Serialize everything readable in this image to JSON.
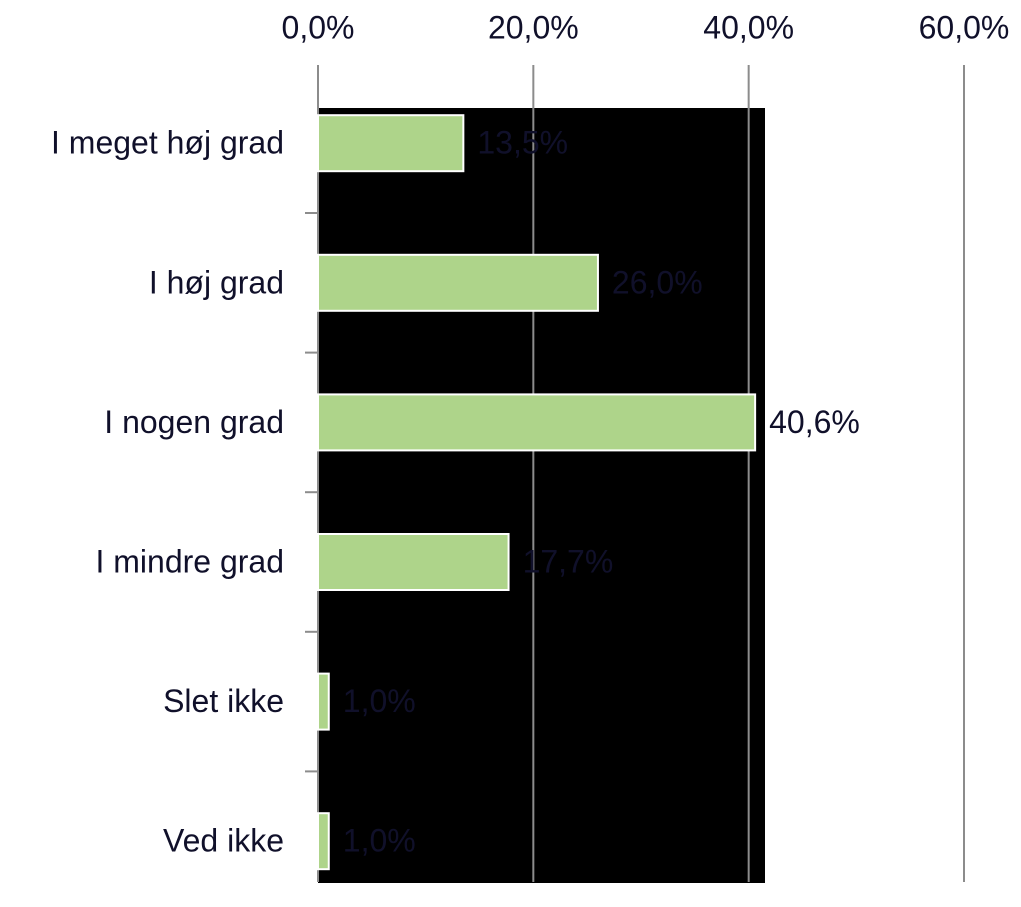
{
  "chart_data": {
    "type": "bar",
    "orientation": "horizontal",
    "categories": [
      "I meget høj grad",
      "I høj grad",
      "I nogen grad",
      "I mindre grad",
      "Slet ikke",
      "Ved ikke"
    ],
    "values": [
      13.5,
      26.0,
      40.6,
      17.7,
      1.0,
      1.0
    ],
    "value_labels": [
      "13,5%",
      "26,0%",
      "40,6%",
      "17,7%",
      "1,0%",
      "1,0%"
    ],
    "color": "#aed48a",
    "xlim": [
      0,
      60
    ],
    "xticks": [
      {
        "value": 0,
        "label": "0,0%"
      },
      {
        "value": 20,
        "label": "20,0%"
      },
      {
        "value": 40,
        "label": "40,0%"
      },
      {
        "value": 60,
        "label": "60,0%"
      }
    ],
    "grid": true
  }
}
